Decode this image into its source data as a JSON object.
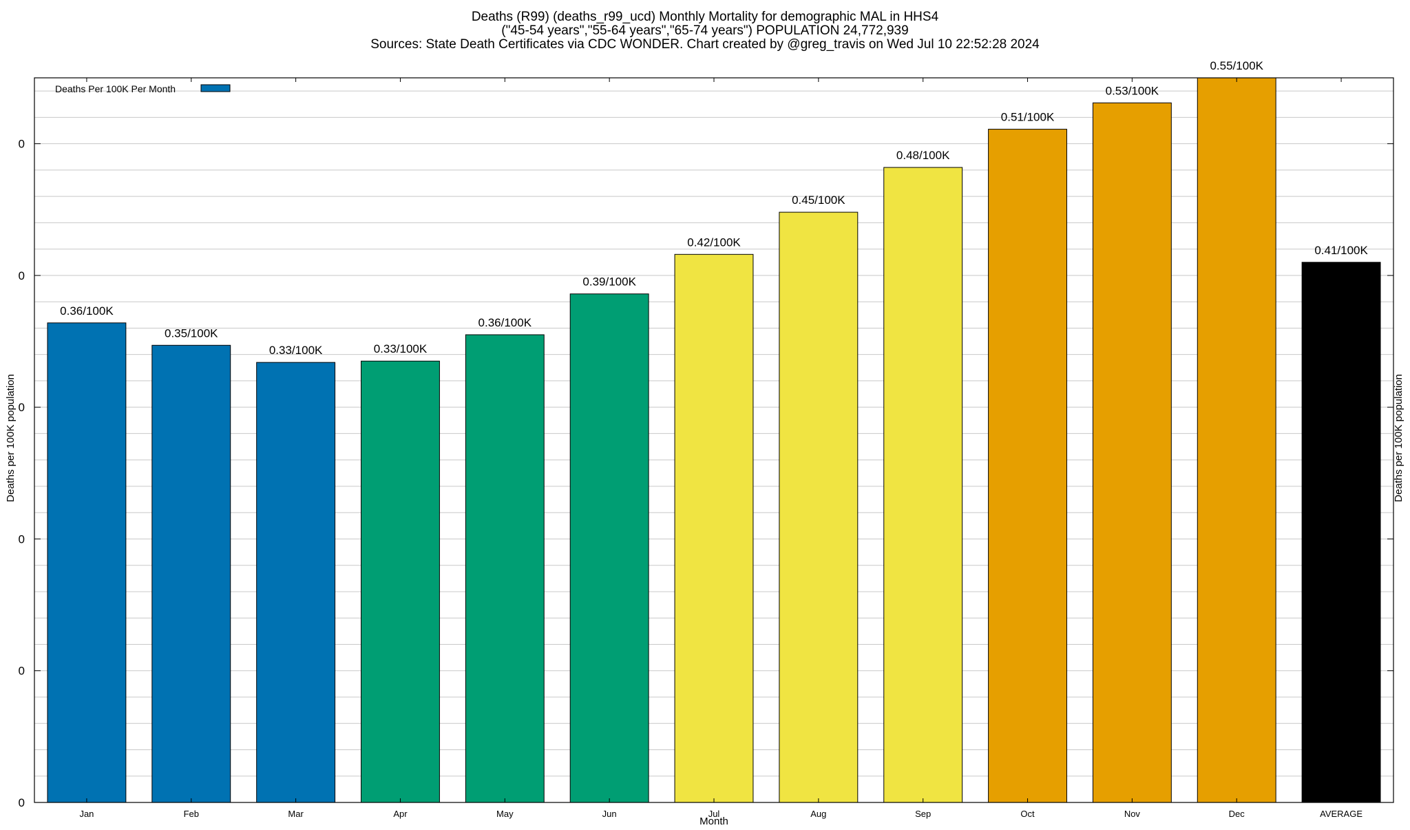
{
  "chart_data": {
    "type": "bar",
    "title_lines": [
      "Deaths (R99) (deaths_r99_ucd) Monthly Mortality for demographic MAL in HHS4",
      "(\"45-54 years\",\"55-64 years\",\"65-74 years\") POPULATION 24,772,939",
      "Sources: State Death Certificates via CDC WONDER.                Chart created by @greg_travis on Wed Jul 10 22:52:28 2024"
    ],
    "xlabel": "Month",
    "ylabel": "Deaths per 100K population",
    "y2label": "Deaths per 100K population",
    "legend": {
      "label": "Deaths Per 100K Per Month",
      "color": "#0072b2",
      "placement": "top-left"
    },
    "ylim": [
      0,
      0.55
    ],
    "yticks": [
      {
        "value": 0,
        "label": "0"
      },
      {
        "value": 0.1,
        "label": "0"
      },
      {
        "value": 0.2,
        "label": "0"
      },
      {
        "value": 0.3,
        "label": "0"
      },
      {
        "value": 0.4,
        "label": "0"
      },
      {
        "value": 0.5,
        "label": "0"
      }
    ],
    "grid_step": 0.02,
    "grid": true,
    "categories": [
      "Jan",
      "Feb",
      "Mar",
      "Apr",
      "May",
      "Jun",
      "Jul",
      "Aug",
      "Sep",
      "Oct",
      "Nov",
      "Dec",
      "AVERAGE"
    ],
    "values": [
      0.364,
      0.347,
      0.334,
      0.335,
      0.355,
      0.386,
      0.416,
      0.448,
      0.482,
      0.511,
      0.531,
      0.552,
      0.41
    ],
    "labels": [
      "0.36/100K",
      "0.35/100K",
      "0.33/100K",
      "0.33/100K",
      "0.36/100K",
      "0.39/100K",
      "0.42/100K",
      "0.45/100K",
      "0.48/100K",
      "0.51/100K",
      "0.53/100K",
      "0.55/100K",
      "0.41/100K"
    ],
    "colors": [
      "#0072b2",
      "#0072b2",
      "#0072b2",
      "#009e73",
      "#009e73",
      "#009e73",
      "#f0e442",
      "#f0e442",
      "#f0e442",
      "#e69f00",
      "#e69f00",
      "#e69f00",
      "#000000"
    ]
  }
}
